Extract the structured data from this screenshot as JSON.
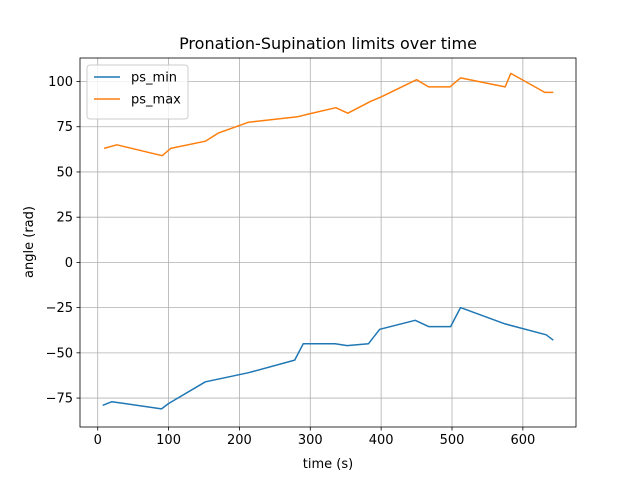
{
  "chart_data": {
    "type": "line",
    "title": "Pronation-Supination limits over time",
    "xlabel": "time (s)",
    "ylabel": "angle (rad)",
    "xlim": [
      -25,
      675
    ],
    "ylim": [
      -91,
      113
    ],
    "xticks": [
      0,
      100,
      200,
      300,
      400,
      500,
      600
    ],
    "yticks": [
      -75,
      -50,
      -25,
      0,
      25,
      50,
      75,
      100
    ],
    "grid": true,
    "legend_position": "upper-left",
    "series": [
      {
        "name": "ps_min",
        "color": "#1f77b4",
        "x": [
          7,
          20,
          90,
          100,
          152,
          213,
          278,
          290,
          335,
          352,
          382,
          398,
          448,
          467,
          498,
          512,
          575,
          633,
          643
        ],
        "y": [
          -79,
          -77,
          -81,
          -78,
          -66,
          -61,
          -54,
          -45,
          -45,
          -46,
          -45,
          -37,
          -32,
          -35.5,
          -35.5,
          -25,
          -34,
          -40,
          -43
        ]
      },
      {
        "name": "ps_max",
        "color": "#ff7f0e",
        "x": [
          9,
          27,
          91,
          103,
          152,
          170,
          213,
          282,
          297,
          336,
          353,
          385,
          400,
          450,
          467,
          497,
          512,
          575,
          583,
          631,
          643
        ],
        "y": [
          63,
          65,
          59,
          63,
          67,
          71.5,
          77.5,
          80.5,
          82,
          85.5,
          82.5,
          89,
          91.5,
          101,
          97,
          97,
          102,
          97,
          104.5,
          94,
          94
        ]
      }
    ]
  }
}
